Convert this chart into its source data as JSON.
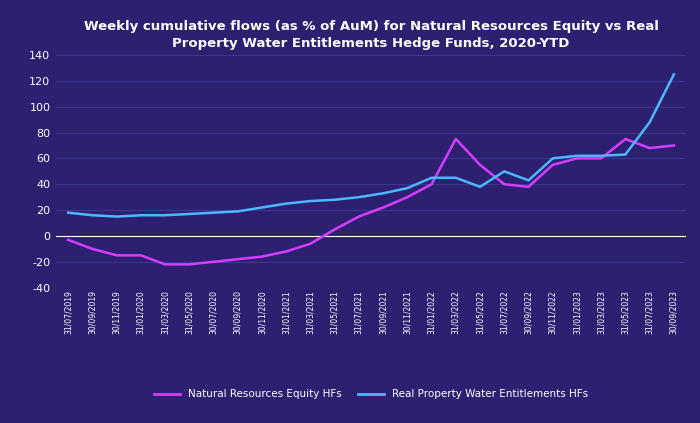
{
  "title": "Weekly cumulative flows (as % of AuM) for Natural Resources Equity vs Real\nProperty Water Entitlements Hedge Funds, 2020-YTD",
  "background_color": "#2d2070",
  "text_color": "#ffffff",
  "grid_color": "#3d3590",
  "ylim": [
    -40,
    140
  ],
  "yticks": [
    -40,
    -20,
    0,
    20,
    40,
    60,
    80,
    100,
    120,
    140
  ],
  "x_labels": [
    "31/07/2019",
    "30/09/2019",
    "30/11/2019",
    "31/01/2020",
    "31/03/2020",
    "31/05/2020",
    "30/07/2020",
    "30/09/2020",
    "30/11/2020",
    "31/01/2021",
    "31/03/2021",
    "31/05/2021",
    "31/07/2021",
    "30/09/2021",
    "30/11/2021",
    "31/01/2022",
    "31/03/2022",
    "31/05/2022",
    "31/07/2022",
    "30/09/2022",
    "30/11/2022",
    "31/01/2023",
    "31/03/2023",
    "31/05/2023",
    "31/07/2023",
    "30/09/2023"
  ],
  "series1_label": "Natural Resources Equity HFs",
  "series1_color": "#d63fff",
  "series2_label": "Real Property Water Entitlements HFs",
  "series2_color": "#4db8ff",
  "series1_values": [
    -3,
    -10,
    -15,
    -15,
    -22,
    -22,
    -20,
    -18,
    -16,
    -12,
    -6,
    5,
    15,
    22,
    30,
    40,
    75,
    55,
    40,
    38,
    55,
    60,
    60,
    75,
    68,
    70
  ],
  "series2_values": [
    18,
    16,
    15,
    16,
    16,
    17,
    18,
    19,
    22,
    25,
    27,
    28,
    30,
    33,
    37,
    45,
    45,
    38,
    50,
    43,
    60,
    62,
    62,
    63,
    88,
    125
  ]
}
